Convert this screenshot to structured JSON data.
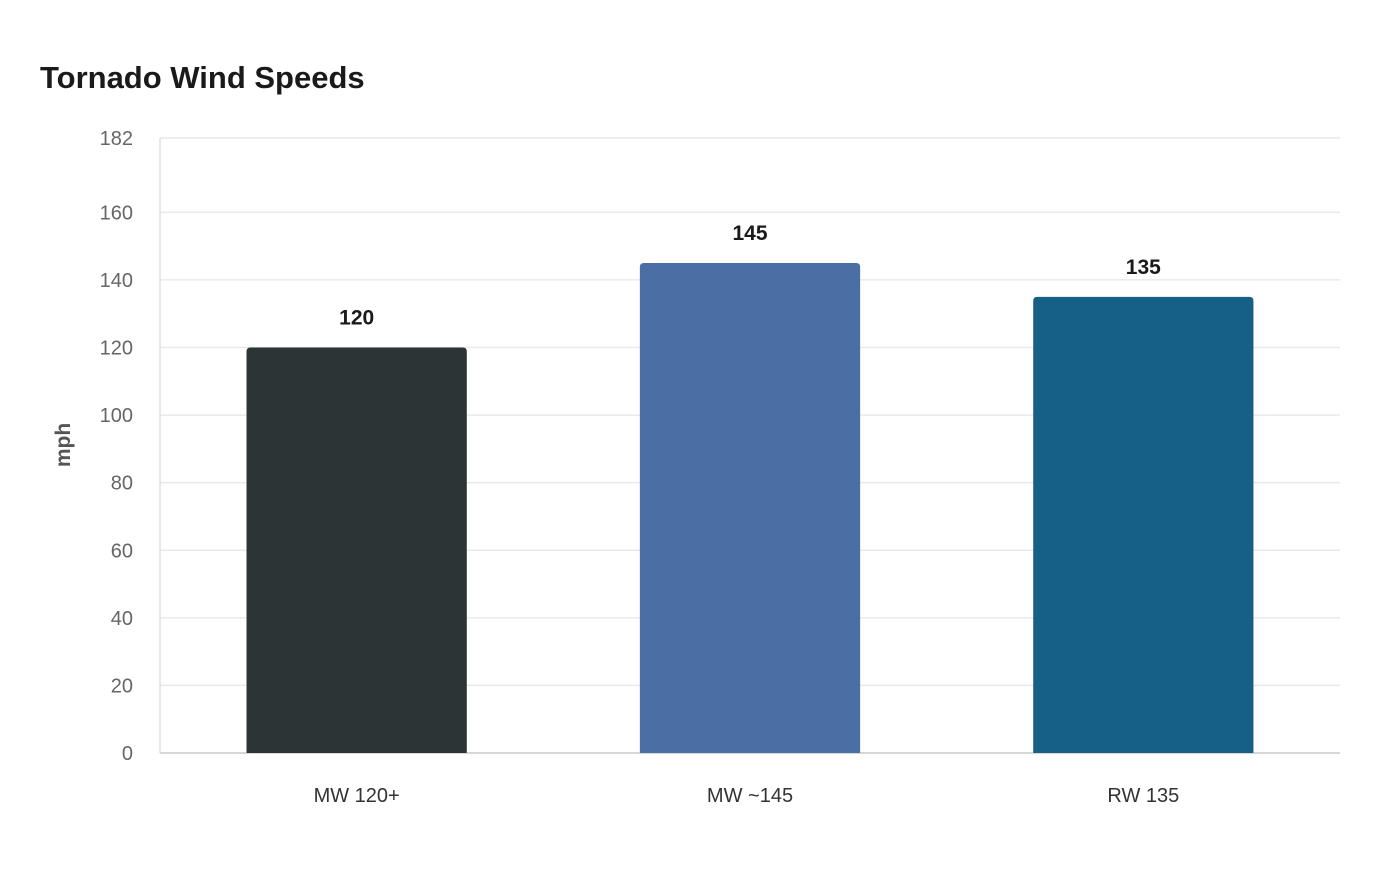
{
  "chart_data": {
    "type": "bar",
    "title": "Tornado Wind Speeds",
    "xlabel": "",
    "ylabel": "mph",
    "categories": [
      "MW 120+",
      "MW ~145",
      "RW 135"
    ],
    "values": [
      120,
      145,
      135
    ],
    "bar_colors": [
      "#2d3436",
      "#4a6fa5",
      "#166088"
    ],
    "ylim": [
      0,
      182
    ],
    "yticks": [
      0,
      20,
      40,
      60,
      80,
      100,
      120,
      140,
      160,
      182
    ],
    "grid": true,
    "legend": "none"
  }
}
